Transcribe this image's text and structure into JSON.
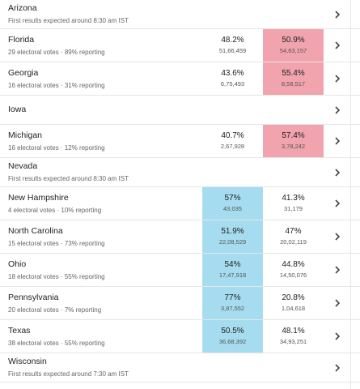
{
  "colors": {
    "dem": "#a6dcef",
    "rep": "#f1a4ad",
    "divider": "#e6e6e6"
  },
  "icons": {
    "row_action": "chevron-right-icon"
  },
  "states": [
    {
      "name": "Arizona",
      "note": "First results expected around 8:30 am IST",
      "a": null,
      "b": null
    },
    {
      "name": "Florida",
      "note": "29 electoral votes · 89% reporting",
      "a": {
        "pct": "48.2%",
        "votes": "51,66,459",
        "highlight": ""
      },
      "b": {
        "pct": "50.9%",
        "votes": "54,63,157",
        "highlight": "rep"
      }
    },
    {
      "name": "Georgia",
      "note": "16 electoral votes · 31% reporting",
      "a": {
        "pct": "43.6%",
        "votes": "6,75,493",
        "highlight": ""
      },
      "b": {
        "pct": "55.4%",
        "votes": "8,58,517",
        "highlight": "rep"
      }
    },
    {
      "name": "Iowa",
      "note": "",
      "a": null,
      "b": null
    },
    {
      "name": "Michigan",
      "note": "16 electoral votes · 12% reporting",
      "a": {
        "pct": "40.7%",
        "votes": "2,67,928",
        "highlight": ""
      },
      "b": {
        "pct": "57.4%",
        "votes": "3,78,242",
        "highlight": "rep"
      }
    },
    {
      "name": "Nevada",
      "note": "First results expected around 8:30 am IST",
      "a": null,
      "b": null
    },
    {
      "name": "New Hampshire",
      "note": "4 electoral votes · 10% reporting",
      "a": {
        "pct": "57%",
        "votes": "43,035",
        "highlight": "dem"
      },
      "b": {
        "pct": "41.3%",
        "votes": "31,179",
        "highlight": ""
      }
    },
    {
      "name": "North Carolina",
      "note": "15 electoral votes · 73% reporting",
      "a": {
        "pct": "51.9%",
        "votes": "22,08,529",
        "highlight": "dem"
      },
      "b": {
        "pct": "47%",
        "votes": "20,02,119",
        "highlight": ""
      }
    },
    {
      "name": "Ohio",
      "note": "18 electoral votes · 55% reporting",
      "a": {
        "pct": "54%",
        "votes": "17,47,918",
        "highlight": "dem"
      },
      "b": {
        "pct": "44.8%",
        "votes": "14,50,076",
        "highlight": ""
      }
    },
    {
      "name": "Pennsylvania",
      "note": "20 electoral votes · 7% reporting",
      "a": {
        "pct": "77%",
        "votes": "3,87,552",
        "highlight": "dem"
      },
      "b": {
        "pct": "20.8%",
        "votes": "1,04,618",
        "highlight": ""
      }
    },
    {
      "name": "Texas",
      "note": "38 electoral votes · 55% reporting",
      "a": {
        "pct": "50.5%",
        "votes": "36,68,392",
        "highlight": "dem"
      },
      "b": {
        "pct": "48.1%",
        "votes": "34,93,251",
        "highlight": ""
      }
    },
    {
      "name": "Wisconsin",
      "note": "First results expected around 7:30 am IST",
      "a": null,
      "b": null
    }
  ]
}
